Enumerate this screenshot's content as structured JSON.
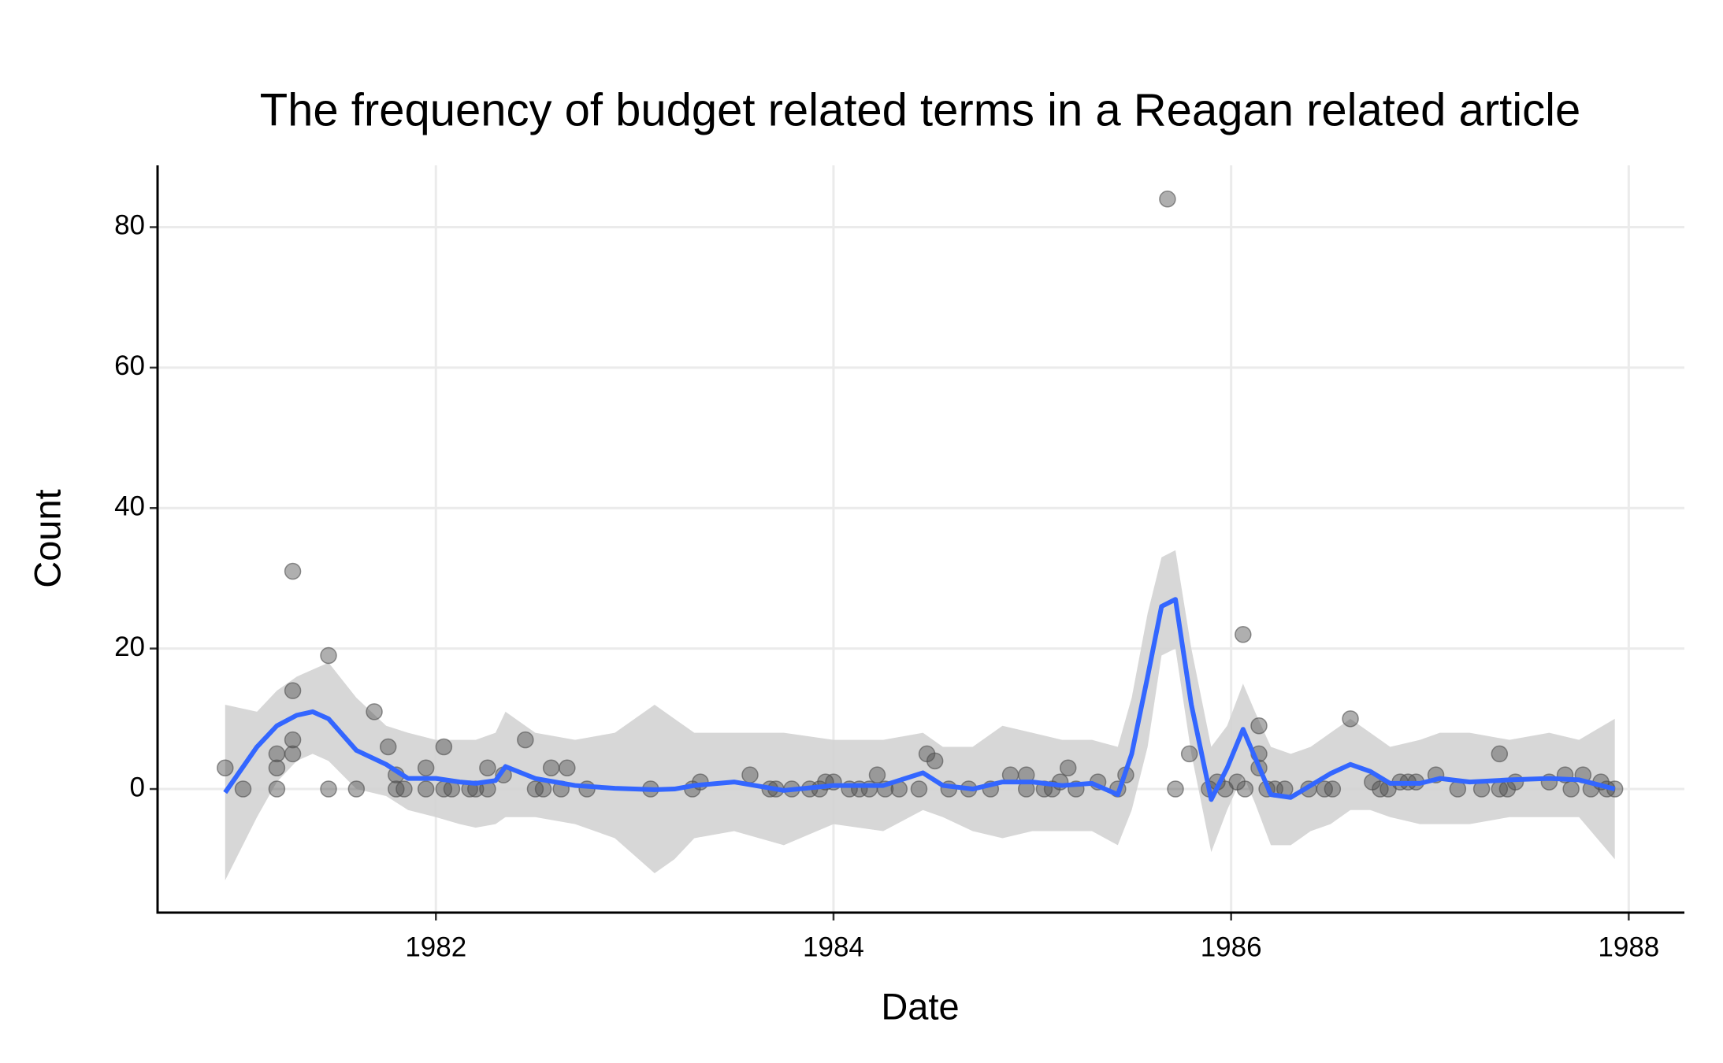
{
  "chart_data": {
    "type": "scatter",
    "title": "The frequency of budget related terms in a Reagan related article",
    "x_label": "Date",
    "y_label": "Count",
    "xlim": [
      1980.6,
      1988.28
    ],
    "ylim": [
      -17.6,
      88.8
    ],
    "xticks": [
      1982,
      1984,
      1986,
      1988
    ],
    "yticks": [
      0,
      20,
      40,
      60,
      80
    ],
    "grid": true,
    "series": [
      {
        "type": "scatter",
        "color": "#4d4d4d",
        "x": [
          1980.94,
          1981.03,
          1981.2,
          1981.2,
          1981.2,
          1981.28,
          1981.28,
          1981.28,
          1981.28,
          1981.46,
          1981.46,
          1981.6,
          1981.69,
          1981.76,
          1981.8,
          1981.8,
          1981.84,
          1981.95,
          1981.95,
          1982.04,
          1982.04,
          1982.08,
          1982.17,
          1982.2,
          1982.26,
          1982.26,
          1982.34,
          1982.45,
          1982.5,
          1982.54,
          1982.58,
          1982.63,
          1982.66,
          1982.76,
          1983.08,
          1983.29,
          1983.33,
          1983.58,
          1983.68,
          1983.71,
          1983.79,
          1983.88,
          1983.93,
          1983.96,
          1984.0,
          1984.08,
          1984.13,
          1984.18,
          1984.22,
          1984.26,
          1984.33,
          1984.43,
          1984.47,
          1984.51,
          1984.58,
          1984.68,
          1984.79,
          1984.89,
          1984.97,
          1984.97,
          1985.06,
          1985.1,
          1985.14,
          1985.18,
          1985.22,
          1985.33,
          1985.43,
          1985.47,
          1985.68,
          1985.72,
          1985.79,
          1985.89,
          1985.93,
          1985.97,
          1986.03,
          1986.06,
          1986.07,
          1986.14,
          1986.14,
          1986.14,
          1986.18,
          1986.22,
          1986.27,
          1986.39,
          1986.47,
          1986.51,
          1986.6,
          1986.71,
          1986.75,
          1986.79,
          1986.85,
          1986.89,
          1986.93,
          1987.03,
          1987.14,
          1987.26,
          1987.35,
          1987.35,
          1987.39,
          1987.43,
          1987.6,
          1987.68,
          1987.71,
          1987.77,
          1987.81,
          1987.86,
          1987.89,
          1987.93
        ],
        "values": [
          3,
          0,
          5,
          3,
          0,
          31,
          14,
          7,
          5,
          19,
          0,
          0,
          11,
          6,
          2,
          0,
          0,
          3,
          0,
          6,
          0,
          0,
          0,
          0,
          3,
          0,
          2,
          7,
          0,
          0,
          3,
          0,
          3,
          0,
          0,
          0,
          1,
          2,
          0,
          0,
          0,
          0,
          0,
          1,
          1,
          0,
          0,
          0,
          2,
          0,
          0,
          0,
          5,
          4,
          0,
          0,
          0,
          2,
          2,
          0,
          0,
          0,
          1,
          3,
          0,
          1,
          0,
          2,
          84,
          0,
          5,
          0,
          1,
          0,
          1,
          22,
          0,
          9,
          5,
          3,
          0,
          0,
          0,
          0,
          0,
          0,
          10,
          1,
          0,
          0,
          1,
          1,
          1,
          2,
          0,
          0,
          5,
          0,
          0,
          1,
          1,
          2,
          0,
          2,
          0,
          1,
          0,
          0
        ]
      },
      {
        "type": "smooth",
        "color": "#3366ff",
        "band_color": "#d3d3d3",
        "x": [
          1980.94,
          1981.1,
          1981.2,
          1981.3,
          1981.38,
          1981.46,
          1981.6,
          1981.75,
          1981.86,
          1982.0,
          1982.12,
          1982.2,
          1982.3,
          1982.35,
          1982.5,
          1982.7,
          1982.9,
          1983.1,
          1983.2,
          1983.3,
          1983.5,
          1983.75,
          1984.0,
          1984.25,
          1984.45,
          1984.55,
          1984.7,
          1984.85,
          1985.0,
          1985.15,
          1985.3,
          1985.43,
          1985.5,
          1985.58,
          1985.65,
          1985.72,
          1985.8,
          1985.9,
          1985.98,
          1986.06,
          1986.12,
          1986.2,
          1986.3,
          1986.4,
          1986.5,
          1986.6,
          1986.7,
          1986.8,
          1986.95,
          1987.05,
          1987.2,
          1987.4,
          1987.6,
          1987.75,
          1987.93
        ],
        "values": [
          -0.5,
          6,
          9,
          10.5,
          11,
          10,
          5.5,
          3.5,
          1.5,
          1.5,
          1,
          0.8,
          1.2,
          3.2,
          1.5,
          0.5,
          0.1,
          -0.1,
          0,
          0.5,
          1,
          -0.2,
          0.5,
          0.5,
          2.3,
          0.5,
          0,
          1,
          1,
          0.5,
          0.8,
          -0.8,
          5,
          16,
          26,
          27,
          12,
          -1.5,
          3,
          8.5,
          4.5,
          -0.8,
          -1.2,
          0.5,
          2.2,
          3.5,
          2.5,
          0.8,
          0.8,
          1.5,
          1,
          1.3,
          1.5,
          1.3,
          0
        ],
        "lower": [
          -13,
          -4,
          1,
          4,
          5,
          4,
          0,
          -1,
          -3,
          -4,
          -5,
          -5.5,
          -5,
          -4,
          -4,
          -5,
          -7,
          -12,
          -10,
          -7,
          -6,
          -8,
          -5,
          -6,
          -3,
          -4,
          -6,
          -7,
          -6,
          -6,
          -6,
          -8,
          -3,
          6,
          19,
          20,
          5,
          -9,
          -3,
          2,
          -2,
          -8,
          -8,
          -6,
          -5,
          -3,
          -3,
          -4,
          -5,
          -5,
          -5,
          -4,
          -4,
          -4,
          -10
        ],
        "upper": [
          12,
          11,
          14,
          16,
          17,
          18,
          13,
          9,
          8,
          7,
          7,
          7,
          8,
          11,
          8,
          7,
          8,
          12,
          10,
          8,
          8,
          8,
          7,
          7,
          8,
          6,
          6,
          9,
          8,
          7,
          7,
          6,
          13,
          25,
          33,
          34,
          20,
          6,
          9,
          15,
          11,
          6,
          5,
          6,
          8,
          10,
          8,
          6,
          7,
          8,
          8,
          7,
          8,
          7,
          10
        ]
      }
    ]
  }
}
